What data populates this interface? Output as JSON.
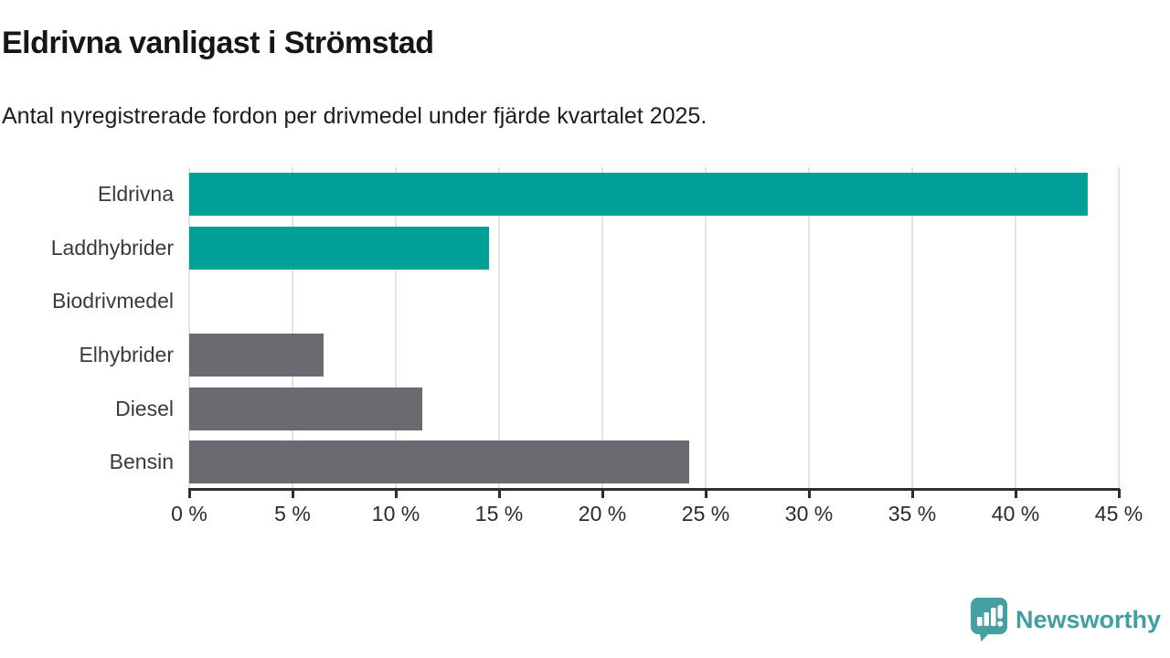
{
  "title": "Eldrivna vanligast i Strömstad",
  "subtitle": "Antal nyregistrerade fordon per drivmedel under fjärde kvartalet 2025.",
  "chart_data": {
    "type": "bar",
    "orientation": "horizontal",
    "title": "Eldrivna vanligast i Strömstad",
    "subtitle": "Antal nyregistrerade fordon per drivmedel under fjärde kvartalet 2025.",
    "categories": [
      "Eldrivna",
      "Laddhybrider",
      "Biodrivmedel",
      "Elhybrider",
      "Diesel",
      "Bensin"
    ],
    "values": [
      43.5,
      14.5,
      0,
      6.5,
      11.3,
      24.2
    ],
    "unit": "%",
    "xlabel": "",
    "ylabel": "",
    "xlim": [
      0,
      45
    ],
    "x_ticks": [
      0,
      5,
      10,
      15,
      20,
      25,
      30,
      35,
      40,
      45
    ],
    "x_tick_labels": [
      "0 %",
      "5 %",
      "10 %",
      "15 %",
      "20 %",
      "25 %",
      "30 %",
      "35 %",
      "40 %",
      "45 %"
    ],
    "bar_colors": [
      "#00a096",
      "#00a096",
      "#00a096",
      "#6b6a70",
      "#6b6a70",
      "#6b6a70"
    ],
    "grid": true,
    "legend": false
  },
  "footer": {
    "brand": "Newsworthy"
  },
  "colors": {
    "accent_teal": "#00a096",
    "neutral_gray": "#6b6a70",
    "logo_teal": "#45a0a2",
    "gridline": "#e2e2e2",
    "axis": "#2e2e2e",
    "title_text": "#161616"
  }
}
